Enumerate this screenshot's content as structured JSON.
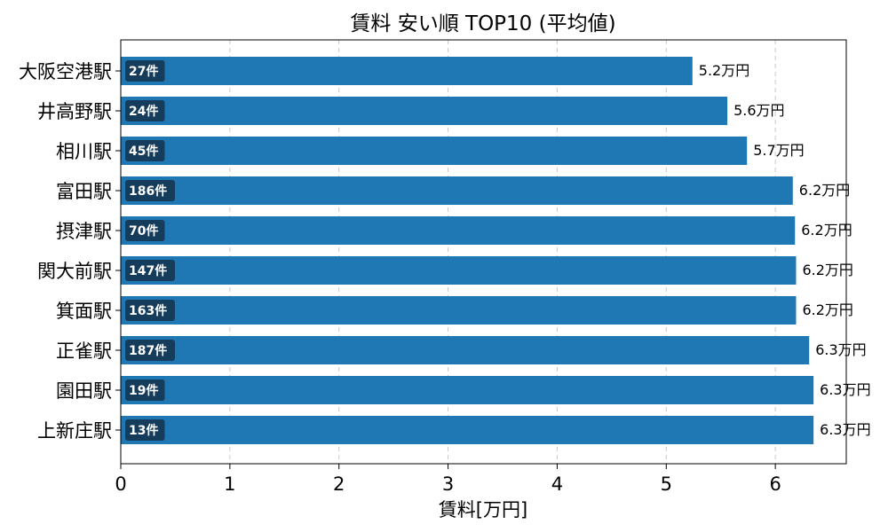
{
  "chart_data": {
    "type": "bar",
    "orientation": "horizontal",
    "title": "賃料 安い順 TOP10 (平均値)",
    "xlabel": "賃料[万円]",
    "ylabel": "",
    "xlim": [
      0,
      6.65
    ],
    "xticks": [
      "0",
      "1",
      "2",
      "3",
      "4",
      "5",
      "6"
    ],
    "grid": "x-dashed",
    "bar_color": "#1f77b4",
    "badge_color": "#163c5c",
    "categories": [
      "大阪空港駅",
      "井高野駅",
      "相川駅",
      "富田駅",
      "摂津駅",
      "関大前駅",
      "箕面駅",
      "正雀駅",
      "園田駅",
      "上新庄駅"
    ],
    "values": [
      5.24,
      5.56,
      5.74,
      6.16,
      6.18,
      6.19,
      6.19,
      6.31,
      6.35,
      6.35
    ],
    "value_labels": [
      "5.2万円",
      "5.6万円",
      "5.7万円",
      "6.2万円",
      "6.2万円",
      "6.2万円",
      "6.2万円",
      "6.3万円",
      "6.3万円",
      "6.3万円"
    ],
    "counts": [
      "27件",
      "24件",
      "45件",
      "186件",
      "70件",
      "147件",
      "163件",
      "187件",
      "19件",
      "13件"
    ]
  }
}
